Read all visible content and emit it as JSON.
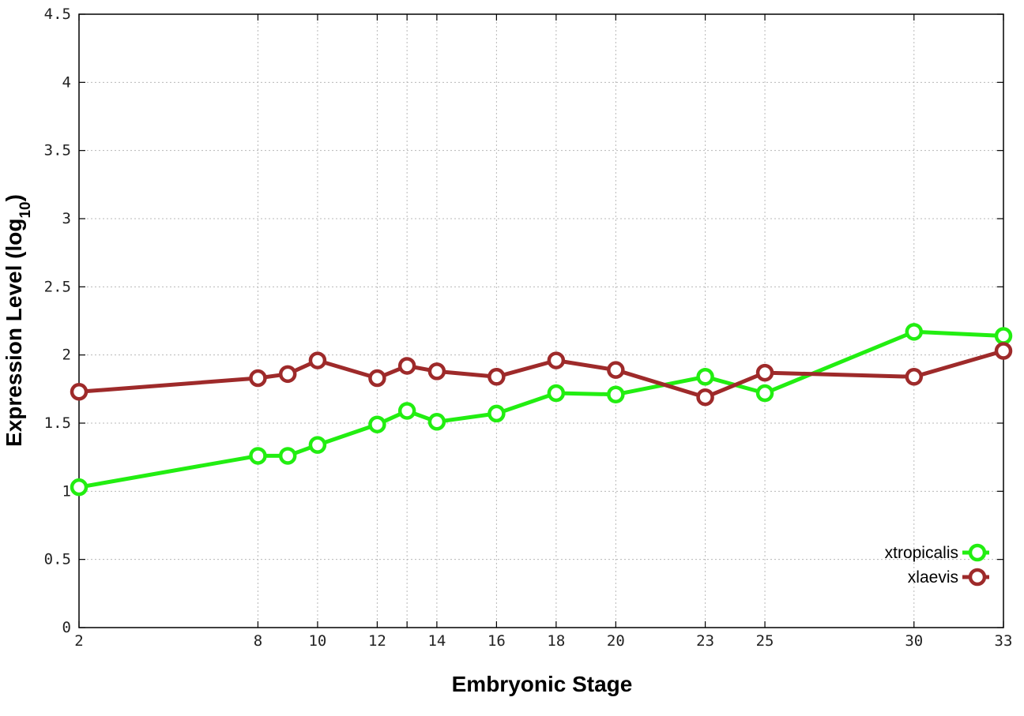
{
  "chart_data": {
    "type": "line",
    "title": "",
    "xlabel": "Embryonic Stage",
    "ylabel": {
      "main": "Expression Level (log",
      "subscript": "10",
      "close": ")"
    },
    "xlim": [
      2,
      33
    ],
    "ylim": [
      0,
      4.5
    ],
    "x_ticks": [
      2,
      8,
      10,
      12,
      13,
      14,
      16,
      18,
      20,
      23,
      25,
      30,
      33
    ],
    "x_tick_labels": [
      {
        "x": 2,
        "label": "2"
      },
      {
        "x": 8,
        "label": "8"
      },
      {
        "x": 10,
        "label": "10"
      },
      {
        "x": 12,
        "label": "12"
      },
      {
        "x": 14,
        "label": "14"
      },
      {
        "x": 16,
        "label": "16"
      },
      {
        "x": 18,
        "label": "18"
      },
      {
        "x": 20,
        "label": "20"
      },
      {
        "x": 23,
        "label": "23"
      },
      {
        "x": 25,
        "label": "25"
      },
      {
        "x": 30,
        "label": "30"
      },
      {
        "x": 33,
        "label": "33"
      }
    ],
    "y_ticks": [
      0,
      0.5,
      1,
      1.5,
      2,
      2.5,
      3,
      3.5,
      4,
      4.5
    ],
    "y_tick_labels": [
      "0",
      "0.5",
      "1",
      "1.5",
      "2",
      "2.5",
      "3",
      "3.5",
      "4",
      "4.5"
    ],
    "grid": true,
    "legend_position": "bottom-right",
    "x": [
      2,
      8,
      9,
      10,
      12,
      13,
      14,
      16,
      18,
      20,
      23,
      25,
      30,
      33
    ],
    "series": [
      {
        "name": "xtropicalis",
        "color": "#22ee11",
        "values": [
          1.03,
          1.26,
          1.26,
          1.34,
          1.49,
          1.59,
          1.51,
          1.57,
          1.72,
          1.71,
          1.84,
          1.72,
          2.17,
          2.14
        ]
      },
      {
        "name": "xlaevis",
        "color": "#9e2a2a",
        "values": [
          1.73,
          1.83,
          1.86,
          1.96,
          1.83,
          1.92,
          1.88,
          1.84,
          1.96,
          1.89,
          1.69,
          1.87,
          1.84,
          2.03
        ]
      }
    ]
  }
}
